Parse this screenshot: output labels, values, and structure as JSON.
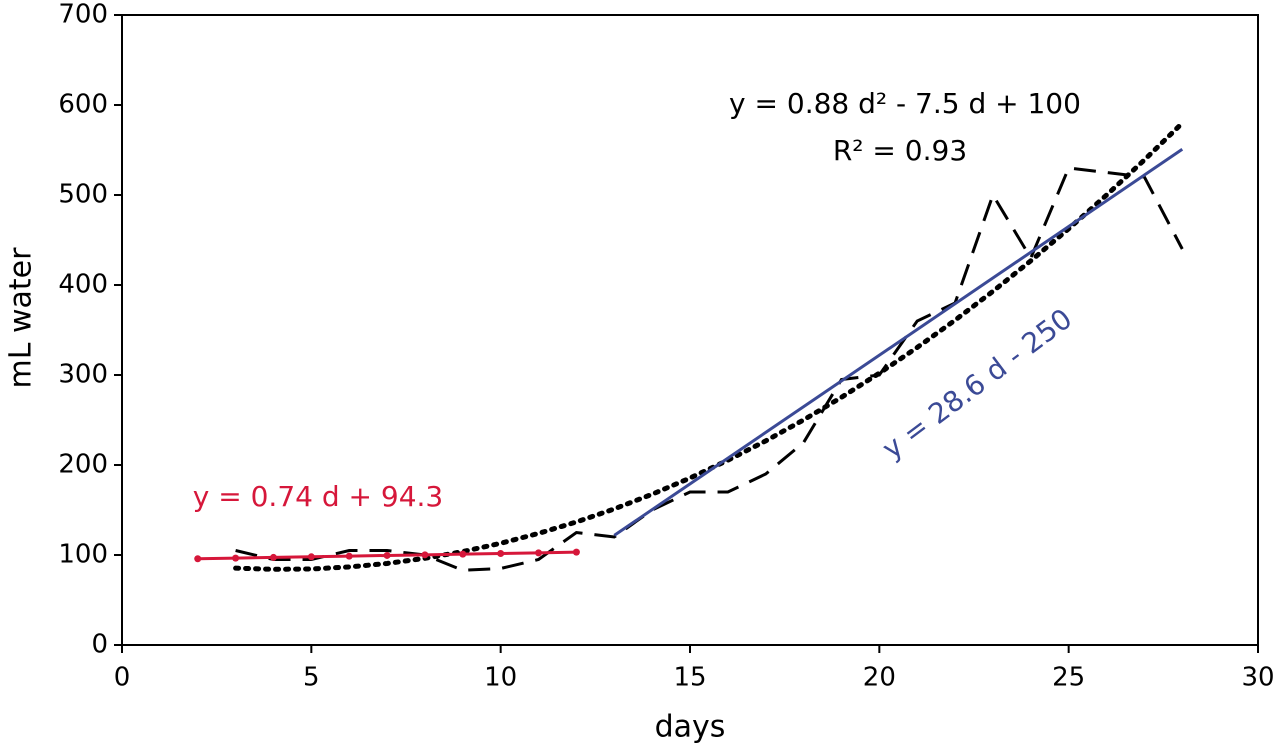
{
  "chart_data": {
    "type": "line",
    "xlabel": "days",
    "ylabel": "mL water",
    "xlim": [
      0,
      30
    ],
    "xticks": [
      0,
      5,
      10,
      15,
      20,
      25,
      30
    ],
    "ylim": [
      0,
      700
    ],
    "yticks": [
      0,
      100,
      200,
      300,
      400,
      500,
      600,
      700
    ],
    "grid": false,
    "series": [
      {
        "color": "#000000",
        "dash": "dashed",
        "markers": false,
        "x": [
          3,
          4,
          5,
          6,
          7,
          8,
          9,
          10,
          11,
          12,
          13,
          14,
          15,
          16,
          17,
          18,
          19,
          20,
          21,
          22,
          23,
          24,
          25,
          26,
          27,
          28
        ],
        "values": [
          105,
          95,
          95,
          105,
          105,
          100,
          83,
          85,
          95,
          125,
          120,
          150,
          170,
          170,
          190,
          225,
          295,
          300,
          360,
          380,
          500,
          430,
          530,
          525,
          520,
          440
        ]
      },
      {
        "color": "#000000",
        "dash": "dotted",
        "markers": false,
        "x": [
          3,
          4,
          5,
          6,
          7,
          8,
          9,
          10,
          11,
          12,
          13,
          14,
          15,
          16,
          17,
          18,
          19,
          20,
          21,
          22,
          23,
          24,
          25,
          26,
          27,
          28
        ],
        "values": [
          85.4,
          84.1,
          84.5,
          86.7,
          90.6,
          96.3,
          103.8,
          113,
          124,
          136.7,
          151.2,
          167.5,
          185.5,
          205.3,
          226.8,
          250.1,
          275.2,
          302,
          330.6,
          360.9,
          393,
          426.9,
          462.5,
          499.9,
          539,
          579.9
        ]
      },
      {
        "color": "#d6173a",
        "dash": "solid",
        "markers": true,
        "x": [
          2,
          3,
          4,
          5,
          6,
          7,
          8,
          9,
          10,
          11,
          12
        ],
        "values": [
          95.8,
          96.5,
          97.3,
          98,
          98.7,
          99.5,
          100.2,
          101,
          101.7,
          102.4,
          103.2
        ]
      },
      {
        "color": "#3b4a96",
        "dash": "solid",
        "markers": false,
        "x": [
          13,
          28
        ],
        "values": [
          121.8,
          550.8
        ]
      }
    ],
    "annotations": [
      {
        "text": "y = 0.88 d² - 7.5 d + 100",
        "color": "#000000"
      },
      {
        "text": "R² = 0.93",
        "color": "#000000"
      },
      {
        "text": "y = 0.74 d + 94.3",
        "color": "#d6173a"
      },
      {
        "text": "y = 28.6 d - 250",
        "color": "#3b4a96"
      }
    ]
  }
}
